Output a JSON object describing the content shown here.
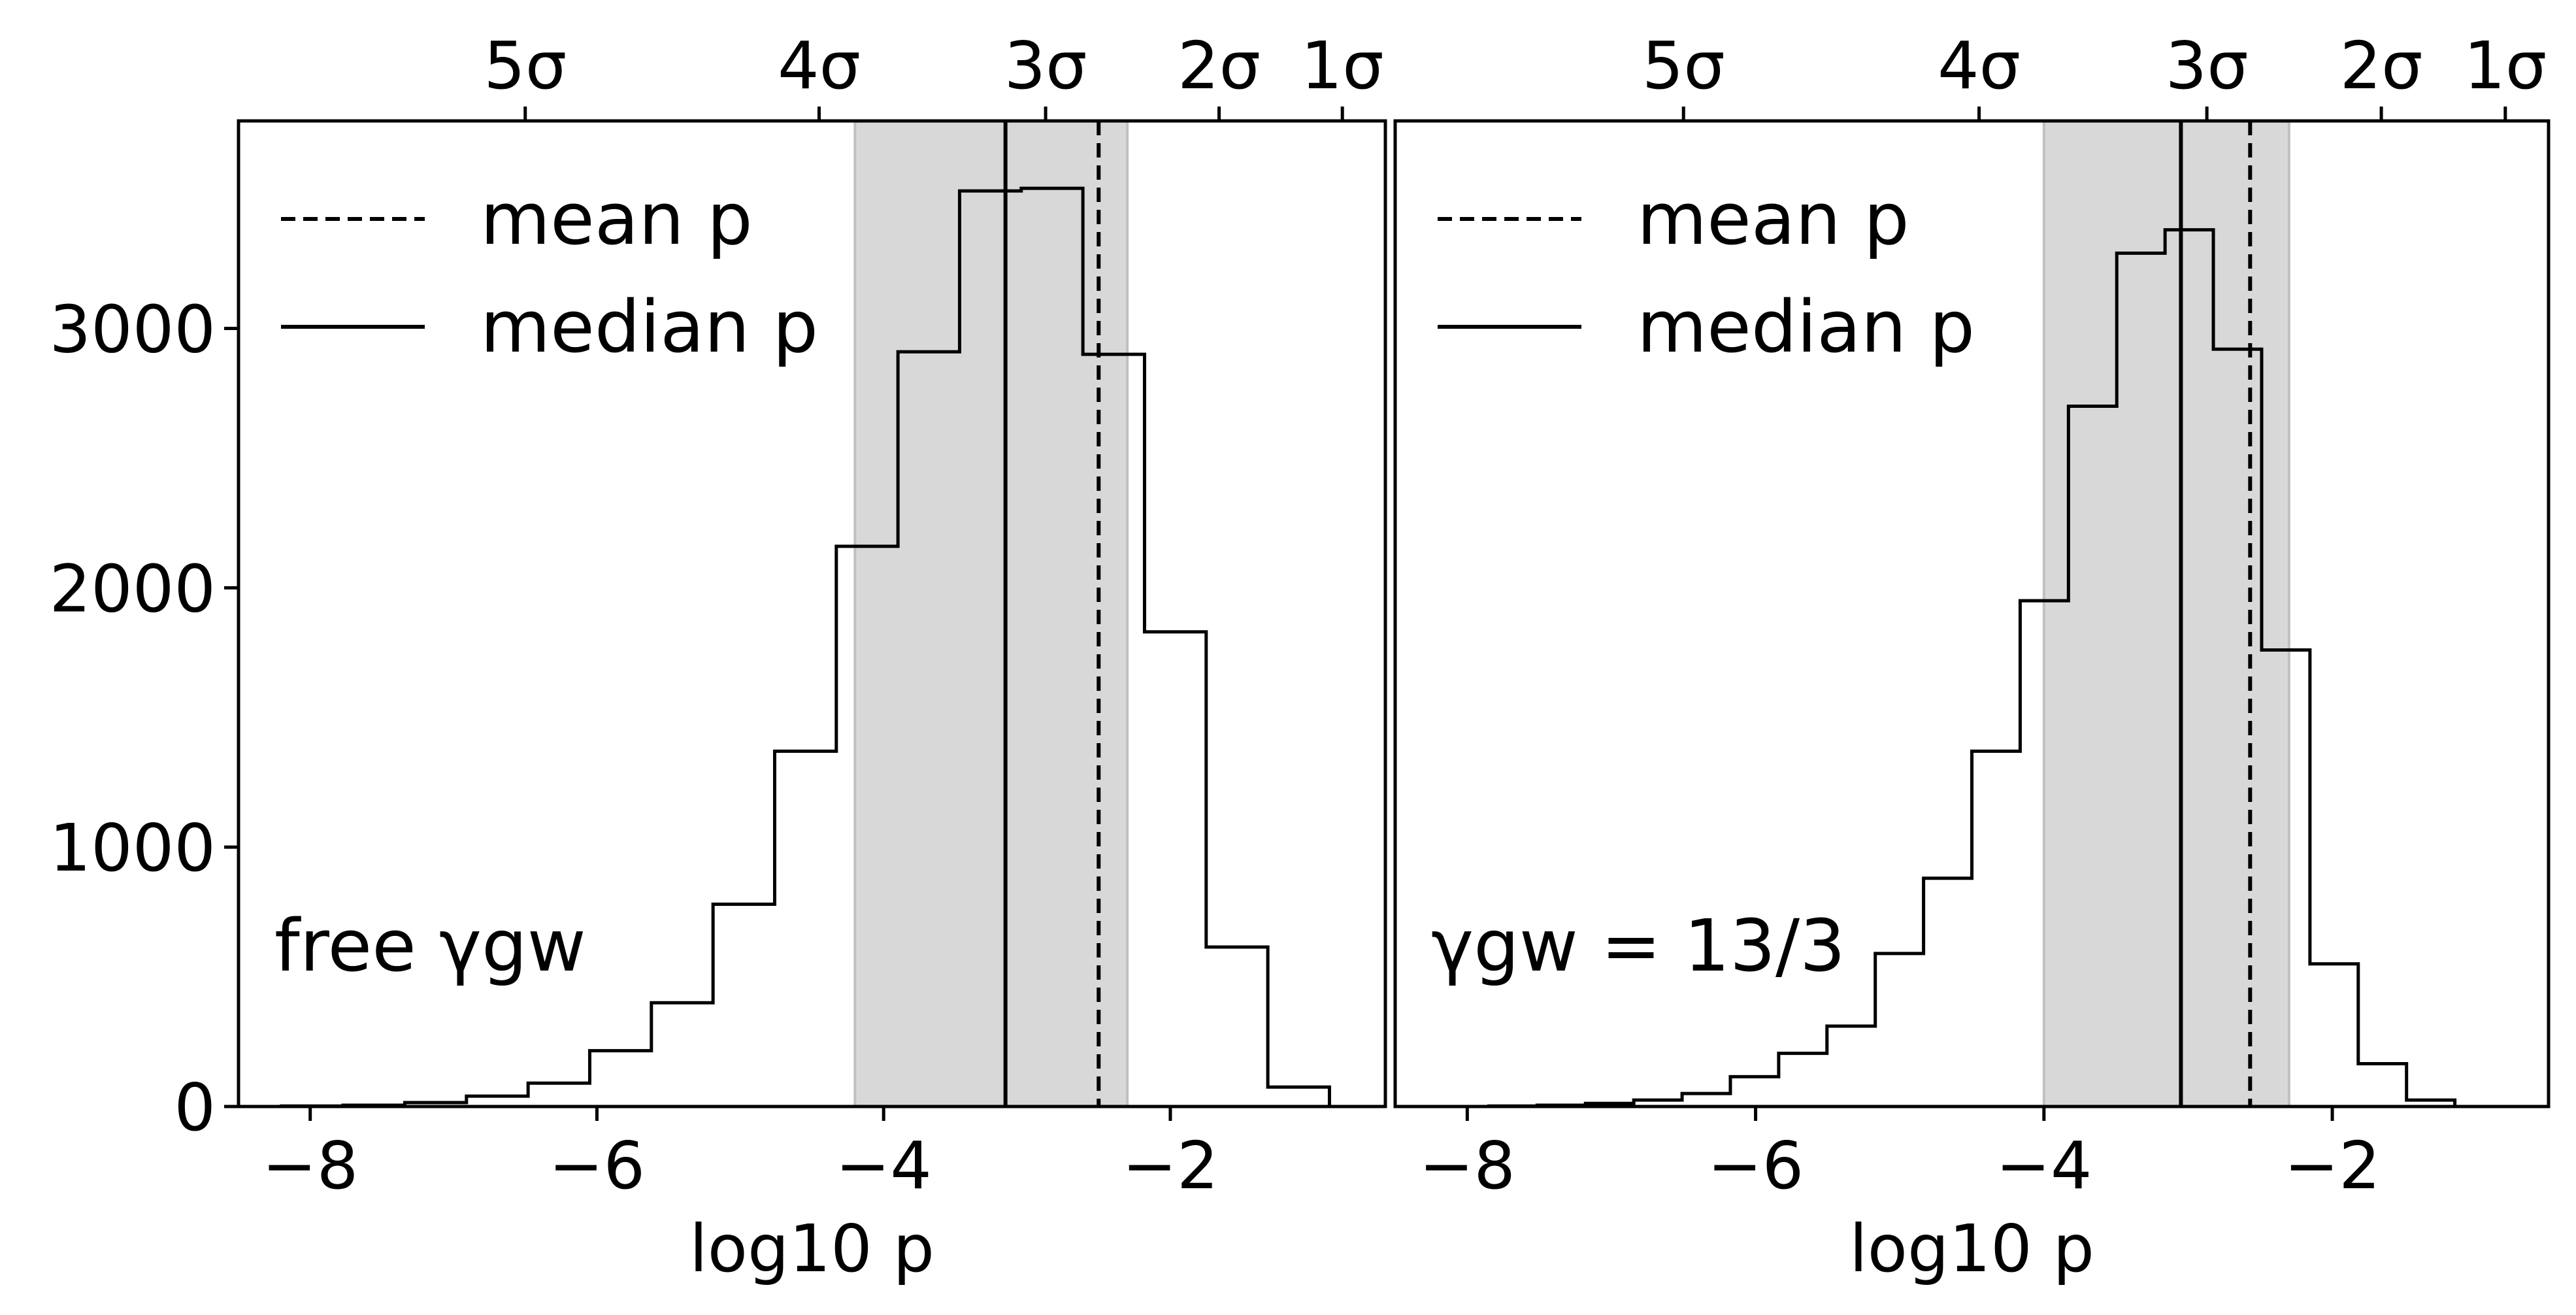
{
  "chart_data": [
    {
      "type": "histogram",
      "panel": "left",
      "annotation": "free γgw",
      "xlabel": "log10 p",
      "ylabel": "",
      "xlim": [
        -8.5,
        -0.5
      ],
      "ylim": [
        0,
        3800
      ],
      "x_ticks": [
        {
          "value": -8,
          "label": "−8"
        },
        {
          "value": -6,
          "label": "−6"
        },
        {
          "value": -4,
          "label": "−4"
        },
        {
          "value": -2,
          "label": "−2"
        }
      ],
      "y_ticks": [
        {
          "value": 0,
          "label": "0"
        },
        {
          "value": 1000,
          "label": "1000"
        },
        {
          "value": 2000,
          "label": "2000"
        },
        {
          "value": 3000,
          "label": "3000"
        }
      ],
      "top_ticks": [
        {
          "value": -6.5,
          "label": "5σ"
        },
        {
          "value": -4.45,
          "label": "4σ"
        },
        {
          "value": -2.87,
          "label": "3σ"
        },
        {
          "value": -1.66,
          "label": "2σ"
        },
        {
          "value": -0.8,
          "label": "1σ"
        }
      ],
      "bin_edges": [
        -8.2,
        -7.77,
        -7.34,
        -6.91,
        -6.48,
        -6.05,
        -5.62,
        -5.19,
        -4.76,
        -4.33,
        -3.9,
        -3.47,
        -3.04,
        -2.61,
        -2.18,
        -1.75,
        -1.32,
        -0.89
      ],
      "counts": [
        2,
        5,
        15,
        40,
        90,
        215,
        400,
        780,
        1370,
        2160,
        2910,
        3530,
        3540,
        2900,
        1830,
        615,
        75
      ],
      "shaded_region": [
        -4.2,
        -2.3
      ],
      "median_log10p": -3.15,
      "mean_log10p": -2.5,
      "legend": [
        {
          "label": "mean p",
          "style": "dashed"
        },
        {
          "label": "median p",
          "style": "solid"
        }
      ],
      "legend_position": "upper-left",
      "grid": false
    },
    {
      "type": "histogram",
      "panel": "right",
      "annotation": "γgw = 13/3",
      "xlabel": "log10 p",
      "ylabel": "",
      "xlim": [
        -8.5,
        -0.5
      ],
      "ylim": [
        0,
        3800
      ],
      "x_ticks": [
        {
          "value": -8,
          "label": "−8"
        },
        {
          "value": -6,
          "label": "−6"
        },
        {
          "value": -4,
          "label": "−4"
        },
        {
          "value": -2,
          "label": "−2"
        }
      ],
      "y_ticks": [],
      "top_ticks": [
        {
          "value": -6.5,
          "label": "5σ"
        },
        {
          "value": -4.45,
          "label": "4σ"
        },
        {
          "value": -2.87,
          "label": "3σ"
        },
        {
          "value": -1.66,
          "label": "2σ"
        },
        {
          "value": -0.8,
          "label": "1σ"
        }
      ],
      "bin_edges": [
        -7.85,
        -7.515,
        -7.18,
        -6.845,
        -6.51,
        -6.175,
        -5.84,
        -5.505,
        -5.17,
        -4.835,
        -4.5,
        -4.165,
        -3.83,
        -3.495,
        -3.16,
        -2.825,
        -2.49,
        -2.155,
        -1.82,
        -1.485,
        -1.15,
        -0.815
      ],
      "counts": [
        2,
        5,
        12,
        25,
        50,
        115,
        205,
        310,
        590,
        880,
        1370,
        1950,
        2700,
        3290,
        3380,
        2920,
        1760,
        550,
        165,
        25,
        0
      ],
      "shaded_region": [
        -4.0,
        -2.3
      ],
      "median_log10p": -3.05,
      "mean_log10p": -2.57,
      "legend": [
        {
          "label": "mean p",
          "style": "dashed"
        },
        {
          "label": "median p",
          "style": "solid"
        }
      ],
      "legend_position": "upper-left",
      "grid": false
    }
  ]
}
